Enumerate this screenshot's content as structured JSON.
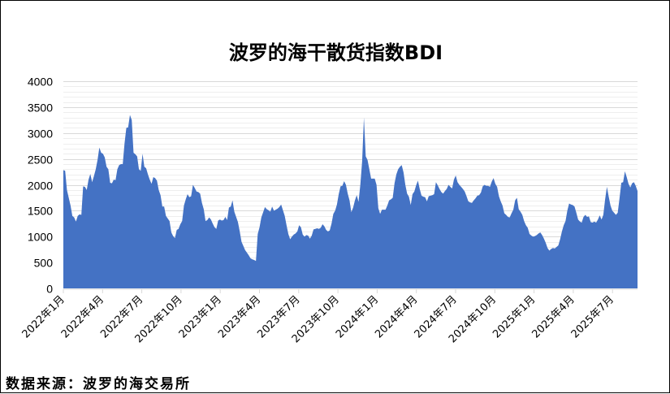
{
  "title": "波罗的海干散货指数BDI",
  "source": "数据来源：波罗的海交易所",
  "colors": {
    "area_fill": "#4472C4",
    "grid": "#D9D9D9",
    "grid_minor": "#EEEEEE",
    "axis": "#D9D9D9"
  },
  "chart_data": {
    "type": "area",
    "title": "波罗的海干散货指数BDI",
    "xlabel": "",
    "ylabel": "",
    "ylim": [
      0,
      4000
    ],
    "yticks": [
      0,
      500,
      1000,
      1500,
      2000,
      2500,
      3000,
      3500,
      4000
    ],
    "xticks": [
      "2022年1月",
      "2022年4月",
      "2022年7月",
      "2022年10月",
      "2023年1月",
      "2023年4月",
      "2023年7月",
      "2023年10月",
      "2024年1月",
      "2024年4月",
      "2024年7月",
      "2024年10月",
      "2025年1月",
      "2025年4月",
      "2025年7月"
    ],
    "grid": true,
    "legend": "none",
    "series": [
      {
        "name": "BDI",
        "x_start": "2022-01",
        "x_end": "2025-08",
        "values": [
          2285,
          2270,
          1900,
          1750,
          1600,
          1400,
          1370,
          1290,
          1400,
          1430,
          1420,
          1970,
          1960,
          1900,
          2100,
          2210,
          2050,
          2170,
          2300,
          2480,
          2720,
          2620,
          2600,
          2530,
          2350,
          2300,
          2040,
          2030,
          2100,
          2090,
          2300,
          2380,
          2400,
          2400,
          2800,
          3100,
          3110,
          3350,
          3250,
          2620,
          2590,
          2550,
          2300,
          2270,
          2600,
          2350,
          2320,
          2200,
          2100,
          2020,
          2150,
          2130,
          2080,
          1900,
          1800,
          1580,
          1580,
          1400,
          1350,
          1300,
          1080,
          1010,
          970,
          1130,
          1150,
          1240,
          1300,
          1600,
          1720,
          1820,
          1760,
          1780,
          2000,
          1940,
          1870,
          1860,
          1830,
          1650,
          1530,
          1300,
          1320,
          1370,
          1330,
          1250,
          1180,
          1150,
          1310,
          1330,
          1310,
          1320,
          1380,
          1320,
          1560,
          1580,
          1700,
          1480,
          1380,
          1280,
          1100,
          900,
          820,
          740,
          690,
          640,
          580,
          560,
          550,
          530,
          1050,
          1180,
          1370,
          1470,
          1570,
          1530,
          1510,
          1480,
          1580,
          1500,
          1520,
          1540,
          1570,
          1620,
          1510,
          1400,
          1220,
          1050,
          950,
          1000,
          1040,
          1060,
          1100,
          1220,
          1180,
          1040,
          1000,
          1030,
          1020,
          960,
          1020,
          1140,
          1150,
          1160,
          1150,
          1170,
          1240,
          1200,
          1130,
          1100,
          1120,
          1250,
          1440,
          1500,
          1620,
          1820,
          1970,
          1980,
          2070,
          2000,
          1830,
          1700,
          1470,
          1560,
          1700,
          1800,
          1670,
          2000,
          2450,
          3300,
          2550,
          2480,
          2300,
          2120,
          2120,
          2120,
          2000,
          1550,
          1440,
          1520,
          1520,
          1520,
          1600,
          1700,
          1720,
          1750,
          2030,
          2200,
          2300,
          2350,
          2380,
          2240,
          2000,
          1830,
          1770,
          1610,
          1820,
          1870,
          1990,
          2080,
          1920,
          1790,
          1770,
          1760,
          1680,
          1780,
          1790,
          1800,
          1820,
          2050,
          1990,
          1920,
          1860,
          1830,
          1880,
          1920,
          2000,
          1960,
          1930,
          2100,
          2180,
          2050,
          2000,
          1960,
          1920,
          1870,
          1780,
          1680,
          1660,
          1650,
          1700,
          1740,
          1790,
          1800,
          1850,
          1970,
          2000,
          1980,
          1980,
          1960,
          2060,
          2130,
          2020,
          1960,
          1780,
          1680,
          1600,
          1450,
          1420,
          1380,
          1370,
          1450,
          1520,
          1700,
          1750,
          1530,
          1480,
          1420,
          1300,
          1220,
          1170,
          1050,
          1020,
          1000,
          1010,
          1030,
          1060,
          1080,
          1030,
          960,
          880,
          780,
          730,
          760,
          780,
          770,
          800,
          830,
          950,
          1100,
          1220,
          1300,
          1500,
          1640,
          1620,
          1610,
          1580,
          1460,
          1330,
          1290,
          1270,
          1380,
          1420,
          1380,
          1390,
          1280,
          1270,
          1290,
          1270,
          1330,
          1410,
          1330,
          1420,
          1720,
          1960,
          1770,
          1600,
          1500,
          1460,
          1420,
          1460,
          1740,
          2040,
          2050,
          2260,
          2150,
          2020,
          1950,
          2030,
          2050,
          1980,
          1880
        ]
      }
    ]
  }
}
